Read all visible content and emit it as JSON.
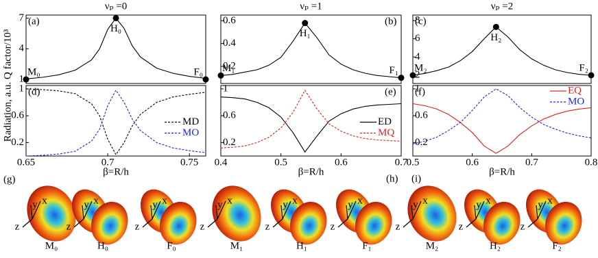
{
  "chart_data": [
    {
      "type": "line",
      "panel_label": "(a)",
      "title": "νₚ =0",
      "y_label": "Radiation, a.u. Q factor/10³",
      "x": [
        0.65,
        0.66,
        0.67,
        0.68,
        0.69,
        0.695,
        0.7,
        0.705,
        0.71,
        0.715,
        0.72,
        0.73,
        0.74,
        0.75,
        0.76
      ],
      "series": [
        {
          "color": "#000000",
          "dash": false,
          "values": [
            1.05,
            1.2,
            1.45,
            1.9,
            2.9,
            4.0,
            5.9,
            7.0,
            6.0,
            4.3,
            3.2,
            2.1,
            1.6,
            1.3,
            1.1
          ]
        }
      ],
      "markers": {
        "labels": [
          "M₀",
          "H₀",
          "F₀"
        ],
        "x": [
          0.65,
          0.705,
          0.76
        ],
        "values": [
          1.0,
          7.0,
          1.0
        ]
      },
      "xlim": [
        0.65,
        0.76
      ],
      "ylim": [
        0.6,
        7.3
      ],
      "yticks": [
        1,
        4,
        7
      ]
    },
    {
      "type": "line",
      "panel_label": "(b)",
      "title": "νₚ =1",
      "x": [
        0.4,
        0.42,
        0.44,
        0.46,
        0.48,
        0.5,
        0.52,
        0.54,
        0.56,
        0.58,
        0.6,
        0.62,
        0.64,
        0.66,
        0.68,
        0.7
      ],
      "series": [
        {
          "color": "#000000",
          "dash": false,
          "values": [
            0.12,
            0.13,
            0.15,
            0.17,
            0.21,
            0.28,
            0.42,
            0.58,
            0.45,
            0.3,
            0.22,
            0.17,
            0.14,
            0.12,
            0.11,
            0.1
          ]
        }
      ],
      "markers": {
        "labels": [
          "M₁",
          "H₁",
          "F₁"
        ],
        "x": [
          0.4,
          0.54,
          0.7
        ],
        "values": [
          0.12,
          0.58,
          0.1
        ]
      },
      "xlim": [
        0.4,
        0.7
      ],
      "ylim": [
        0.05,
        0.65
      ],
      "yticks": [
        0.2,
        0.4,
        0.6
      ]
    },
    {
      "type": "line",
      "panel_label": "(c)",
      "title": "νₚ =2",
      "x": [
        0.5,
        0.52,
        0.54,
        0.56,
        0.58,
        0.6,
        0.62,
        0.64,
        0.66,
        0.68,
        0.7,
        0.72,
        0.74,
        0.76,
        0.78,
        0.8
      ],
      "series": [
        {
          "color": "#000000",
          "dash": false,
          "values": [
            2.0,
            2.2,
            2.5,
            2.9,
            3.6,
            4.6,
            6.0,
            7.3,
            6.2,
            4.8,
            3.8,
            3.1,
            2.6,
            2.3,
            2.1,
            2.0
          ]
        }
      ],
      "markers": {
        "labels": [
          "M₂",
          "H₂",
          "F₂"
        ],
        "x": [
          0.5,
          0.64,
          0.8
        ],
        "values": [
          2.0,
          7.3,
          2.0
        ]
      },
      "xlim": [
        0.5,
        0.8
      ],
      "ylim": [
        1.1,
        8.6
      ],
      "yticks": [
        2,
        4,
        6,
        8
      ]
    },
    {
      "type": "line",
      "panel_label": "(d)",
      "x_label": "β=R/h",
      "legend": "right",
      "x": [
        0.65,
        0.66,
        0.67,
        0.68,
        0.69,
        0.695,
        0.7,
        0.705,
        0.71,
        0.715,
        0.72,
        0.73,
        0.74,
        0.75,
        0.76
      ],
      "series": [
        {
          "name": "MD",
          "color": "#000000",
          "dash": true,
          "values": [
            1.0,
            0.99,
            0.97,
            0.93,
            0.78,
            0.6,
            0.25,
            0.02,
            0.2,
            0.45,
            0.62,
            0.8,
            0.88,
            0.92,
            0.95
          ]
        },
        {
          "name": "MO",
          "color": "#1f1fe0",
          "dash": true,
          "values": [
            0.0,
            0.01,
            0.03,
            0.07,
            0.22,
            0.4,
            0.75,
            0.98,
            0.8,
            0.55,
            0.38,
            0.2,
            0.12,
            0.08,
            0.05
          ]
        }
      ],
      "xlim": [
        0.65,
        0.76
      ],
      "ylim": [
        0,
        1.05
      ],
      "xticks": [
        0.65,
        0.7,
        0.75
      ],
      "yticks": [
        0.2,
        0.6,
        1
      ]
    },
    {
      "type": "line",
      "panel_label": "(e)",
      "x_label": "β=R/h",
      "legend": "right",
      "x": [
        0.4,
        0.42,
        0.44,
        0.46,
        0.48,
        0.5,
        0.52,
        0.54,
        0.56,
        0.58,
        0.6,
        0.62,
        0.64,
        0.66,
        0.68,
        0.7
      ],
      "series": [
        {
          "name": "ED",
          "color": "#000000",
          "dash": false,
          "values": [
            0.88,
            0.87,
            0.85,
            0.8,
            0.72,
            0.58,
            0.35,
            0.06,
            0.3,
            0.52,
            0.63,
            0.7,
            0.74,
            0.76,
            0.77,
            0.78
          ]
        },
        {
          "name": "MQ",
          "color": "#e02020",
          "dash": true,
          "values": [
            0.12,
            0.13,
            0.15,
            0.2,
            0.28,
            0.42,
            0.65,
            0.98,
            0.7,
            0.48,
            0.37,
            0.3,
            0.26,
            0.24,
            0.23,
            0.22
          ]
        }
      ],
      "xlim": [
        0.4,
        0.7
      ],
      "ylim": [
        0,
        1.05
      ],
      "xticks": [
        0.4,
        0.5,
        0.6,
        0.7
      ],
      "yticks": [
        0.2,
        0.6,
        1
      ]
    },
    {
      "type": "line",
      "panel_label": "(f)",
      "x_label": "β=R/h",
      "legend": "upper right",
      "x": [
        0.5,
        0.52,
        0.54,
        0.56,
        0.58,
        0.6,
        0.62,
        0.64,
        0.66,
        0.68,
        0.7,
        0.72,
        0.74,
        0.76,
        0.78,
        0.8
      ],
      "series": [
        {
          "name": "EQ",
          "color": "#e02020",
          "dash": false,
          "values": [
            0.78,
            0.75,
            0.7,
            0.62,
            0.5,
            0.35,
            0.15,
            0.04,
            0.15,
            0.32,
            0.45,
            0.55,
            0.62,
            0.67,
            0.7,
            0.72
          ]
        },
        {
          "name": "MO",
          "color": "#1f1fe0",
          "dash": true,
          "values": [
            0.18,
            0.22,
            0.28,
            0.38,
            0.5,
            0.68,
            0.88,
            1.0,
            0.9,
            0.72,
            0.58,
            0.47,
            0.4,
            0.34,
            0.3,
            0.27
          ]
        }
      ],
      "xlim": [
        0.5,
        0.8
      ],
      "ylim": [
        0,
        1.05
      ],
      "xticks": [
        0.5,
        0.6,
        0.7,
        0.8
      ],
      "yticks": [
        0.2,
        0.6,
        1
      ]
    }
  ],
  "render_panels": [
    {
      "label": "(g)",
      "items": [
        "M₀",
        "H₀",
        "F₀"
      ]
    },
    {
      "label": "(h)",
      "items": [
        "M₁",
        "H₁",
        "F₁"
      ]
    },
    {
      "label": "(i)",
      "items": [
        "M₂",
        "H₂",
        "F₂"
      ]
    }
  ],
  "axis_letters": [
    "x",
    "y",
    "z"
  ]
}
